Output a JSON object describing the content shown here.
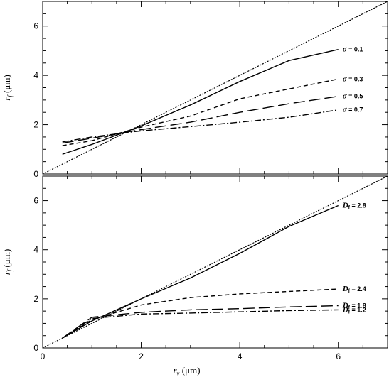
{
  "chart_data": [
    {
      "type": "line",
      "xlabel": "",
      "ylabel_symbol": "r",
      "ylabel_sub": "f",
      "ylabel_unit": "(μm)",
      "xlim": [
        0,
        7
      ],
      "ylim": [
        0,
        7
      ],
      "xticks": [
        0,
        2,
        4,
        6
      ],
      "yticks": [
        0,
        2,
        4,
        6
      ],
      "xtick_labels": [
        "",
        "",
        "",
        ""
      ],
      "ytick_labels": [
        "0",
        "2",
        "4",
        "6"
      ],
      "reference_line": {
        "style": "dotted",
        "x": [
          0,
          7
        ],
        "y": [
          0,
          7
        ]
      },
      "series": [
        {
          "name_symbol": "σ",
          "name_value": " = 0.1",
          "style": "solid",
          "x": [
            0.4,
            1,
            2,
            3,
            4,
            5,
            6
          ],
          "y": [
            0.8,
            1.2,
            1.95,
            2.8,
            3.75,
            4.6,
            5.05
          ]
        },
        {
          "name_symbol": "σ",
          "name_value": " = 0.3",
          "style": "short-dash",
          "x": [
            0.4,
            1,
            2,
            3,
            4,
            5,
            6
          ],
          "y": [
            1.15,
            1.35,
            1.9,
            2.35,
            3.05,
            3.45,
            3.85
          ]
        },
        {
          "name_symbol": "σ",
          "name_value": " = 0.5",
          "style": "long-dash",
          "x": [
            0.4,
            1,
            2,
            3,
            4,
            5,
            6
          ],
          "y": [
            1.25,
            1.45,
            1.8,
            2.1,
            2.5,
            2.85,
            3.15
          ]
        },
        {
          "name_symbol": "σ",
          "name_value": " = 0.7",
          "style": "dash-dot",
          "x": [
            0.4,
            1,
            2,
            3,
            4,
            5,
            6
          ],
          "y": [
            1.3,
            1.5,
            1.75,
            1.92,
            2.1,
            2.3,
            2.6
          ]
        }
      ]
    },
    {
      "type": "line",
      "xlabel_symbol": "r",
      "xlabel_sub": "v",
      "xlabel_unit": "(μm)",
      "ylabel_symbol": "r",
      "ylabel_sub": "f",
      "ylabel_unit": "(μm)",
      "xlim": [
        0,
        7
      ],
      "ylim": [
        0,
        7
      ],
      "xticks": [
        0,
        2,
        4,
        6
      ],
      "yticks": [
        0,
        2,
        4,
        6
      ],
      "xtick_labels": [
        "0",
        "2",
        "4",
        "6"
      ],
      "ytick_labels": [
        "0",
        "2",
        "4",
        "6"
      ],
      "reference_line": {
        "style": "dotted",
        "x": [
          0,
          7
        ],
        "y": [
          0,
          7
        ]
      },
      "series": [
        {
          "name_symbol": "D",
          "name_sub": "f",
          "name_value": " = 2.8",
          "style": "solid",
          "x": [
            0.4,
            1,
            2,
            3,
            4,
            5,
            6
          ],
          "y": [
            0.4,
            1.1,
            2.0,
            2.85,
            3.85,
            4.95,
            5.8
          ]
        },
        {
          "name_symbol": "D",
          "name_sub": "f",
          "name_value": " = 2.4",
          "style": "short-dash",
          "x": [
            0.4,
            1,
            2,
            3,
            4,
            5,
            6
          ],
          "y": [
            0.4,
            1.15,
            1.75,
            2.05,
            2.2,
            2.3,
            2.4
          ]
        },
        {
          "name_symbol": "D",
          "name_sub": "f",
          "name_value": " = 1.8",
          "style": "long-dash",
          "x": [
            0.4,
            1,
            2,
            3,
            4,
            5,
            6
          ],
          "y": [
            0.4,
            1.25,
            1.45,
            1.55,
            1.6,
            1.67,
            1.72
          ]
        },
        {
          "name_symbol": "D",
          "name_sub": "f",
          "name_value": " = 1.2",
          "style": "dash-dot",
          "x": [
            0.4,
            1,
            2,
            3,
            4,
            5,
            6
          ],
          "y": [
            0.4,
            1.2,
            1.38,
            1.42,
            1.47,
            1.52,
            1.55
          ]
        }
      ]
    }
  ]
}
